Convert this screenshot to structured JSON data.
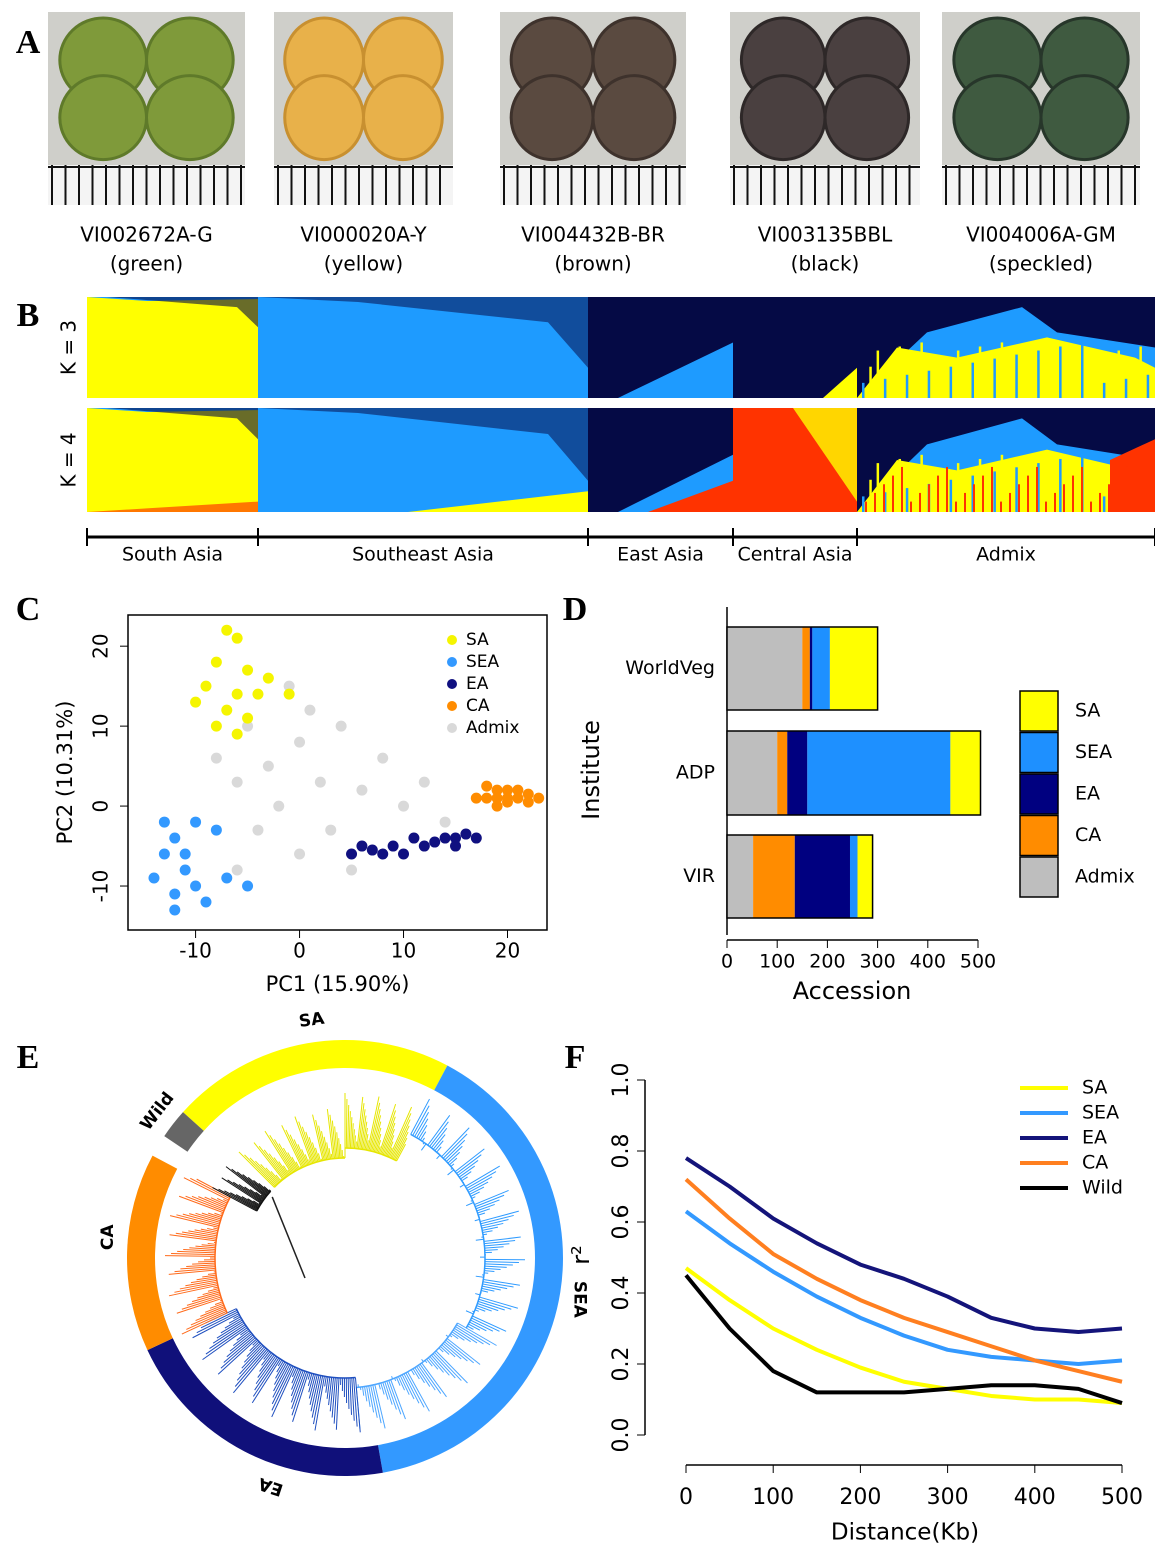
{
  "panel_labels": [
    "A",
    "B",
    "C",
    "D",
    "E",
    "F"
  ],
  "panel_a": {
    "samples": [
      {
        "id": "VI002672A-G",
        "label": "(green)"
      },
      {
        "id": "VI000020A-Y",
        "label": "(yellow)"
      },
      {
        "id": "VI004432B-BR",
        "label": "(brown)"
      },
      {
        "id": "VI003135BBL",
        "label": "(black)"
      },
      {
        "id": "VI004006A-GM",
        "label": "(speckled)"
      }
    ]
  },
  "panel_b": {
    "rows": [
      "K = 3",
      "K = 4"
    ],
    "groups": [
      "South Asia",
      "Southeast Asia",
      "East Asia",
      "Central Asia",
      "Admix"
    ]
  },
  "panel_e": {
    "labels": [
      "SA",
      "SEA",
      "EA",
      "CA",
      "Wild"
    ]
  },
  "chart_data": [
    {
      "type": "scatter",
      "x_label": "PC1 (15.90%)",
      "y_label": "PC2 (10.31%)",
      "xlim": [
        -16.5,
        23.8
      ],
      "ylim": [
        -15.5,
        23.9
      ],
      "xticks": [
        -10,
        0,
        10,
        20
      ],
      "yticks": [
        -10,
        0,
        10,
        20
      ],
      "legend": "top-right",
      "series": [
        {
          "name": "Admix",
          "color": "#d9d9d9",
          "x": [
            -5,
            -3,
            0,
            -2,
            2,
            4,
            6,
            8,
            -6,
            0,
            3,
            -4,
            10,
            12,
            -8,
            -1,
            14,
            5,
            1,
            -6
          ],
          "y": [
            10,
            5,
            8,
            0,
            3,
            10,
            2,
            6,
            -8,
            -6,
            -3,
            -3,
            0,
            3,
            6,
            15,
            -2,
            -8,
            12,
            3
          ]
        },
        {
          "name": "SA",
          "color": "#f5f500",
          "x": [
            -7,
            -6,
            -8,
            -5,
            -9,
            -6,
            -4,
            -7,
            -10,
            -3,
            -5,
            -8,
            -1,
            -6
          ],
          "y": [
            22,
            21,
            18,
            17,
            15,
            14,
            14,
            12,
            13,
            16,
            11,
            10,
            14,
            9
          ]
        },
        {
          "name": "SEA",
          "color": "#3399ff",
          "x": [
            -12,
            -13,
            -11,
            -14,
            -10,
            -12,
            -9,
            -13,
            -11,
            -7,
            -10,
            -8,
            -5,
            -12
          ],
          "y": [
            -4,
            -6,
            -8,
            -9,
            -10,
            -11,
            -12,
            -2,
            -6,
            -9,
            -2,
            -3,
            -10,
            -13
          ]
        },
        {
          "name": "EA",
          "color": "#101080",
          "x": [
            5,
            7,
            9,
            10,
            12,
            13,
            14,
            15,
            16,
            17,
            11,
            8,
            6,
            15
          ],
          "y": [
            -6,
            -5.5,
            -5,
            -6,
            -5,
            -4.5,
            -4,
            -4,
            -3.5,
            -4,
            -4,
            -6,
            -5,
            -5
          ]
        },
        {
          "name": "CA",
          "color": "#ff8c00",
          "x": [
            18,
            19,
            20,
            21,
            22,
            20,
            19,
            21,
            22,
            17,
            18,
            20,
            23,
            19
          ],
          "y": [
            1,
            2,
            0.5,
            1,
            0.5,
            2,
            0,
            2,
            1.5,
            1,
            2.5,
            1,
            1,
            1
          ]
        }
      ]
    },
    {
      "type": "stacked-barh",
      "x_label": "Accession",
      "y_label": "Institute",
      "categories": [
        "WorldVeg",
        "ADP",
        "VIR"
      ],
      "xlim": [
        0,
        500
      ],
      "xticks": [
        0,
        100,
        200,
        300,
        400,
        500
      ],
      "series": [
        {
          "name": "Admix",
          "color": "#bebebe",
          "values": [
            150,
            100,
            52
          ]
        },
        {
          "name": "CA",
          "color": "#ff8c00",
          "values": [
            15,
            20,
            83
          ]
        },
        {
          "name": "EA",
          "color": "#000080",
          "values": [
            5,
            40,
            110
          ]
        },
        {
          "name": "SEA",
          "color": "#1e90ff",
          "values": [
            35,
            285,
            15
          ]
        },
        {
          "name": "SA",
          "color": "#ffff00",
          "values": [
            95,
            60,
            30
          ]
        }
      ]
    },
    {
      "type": "line",
      "x_label": "Distance(Kb)",
      "y_label": "r²",
      "x": [
        0,
        50,
        100,
        150,
        200,
        250,
        300,
        350,
        400,
        450,
        500
      ],
      "xlim": [
        0,
        500
      ],
      "xticks": [
        0,
        100,
        200,
        300,
        400,
        500
      ],
      "ylim": [
        0,
        1
      ],
      "yticks": [
        {
          "value": 0,
          "label": "0.0"
        },
        0.2,
        0.4,
        0.6,
        0.8,
        {
          "value": 1,
          "label": "1.0"
        }
      ],
      "series": [
        {
          "name": "SA",
          "color": "#ffff00",
          "values": [
            0.47,
            0.38,
            0.3,
            0.24,
            0.19,
            0.15,
            0.13,
            0.11,
            0.1,
            0.1,
            0.09
          ]
        },
        {
          "name": "SEA",
          "color": "#3399ff",
          "values": [
            0.63,
            0.54,
            0.46,
            0.39,
            0.33,
            0.28,
            0.24,
            0.22,
            0.21,
            0.2,
            0.21
          ]
        },
        {
          "name": "EA",
          "color": "#14147a",
          "values": [
            0.78,
            0.7,
            0.61,
            0.54,
            0.48,
            0.44,
            0.39,
            0.33,
            0.3,
            0.29,
            0.3
          ]
        },
        {
          "name": "CA",
          "color": "#ff7f20",
          "values": [
            0.72,
            0.61,
            0.51,
            0.44,
            0.38,
            0.33,
            0.29,
            0.25,
            0.21,
            0.18,
            0.15
          ]
        },
        {
          "name": "Wild",
          "color": "#000000",
          "values": [
            0.45,
            0.3,
            0.18,
            0.12,
            0.12,
            0.12,
            0.13,
            0.14,
            0.14,
            0.13,
            0.09
          ]
        }
      ]
    }
  ]
}
